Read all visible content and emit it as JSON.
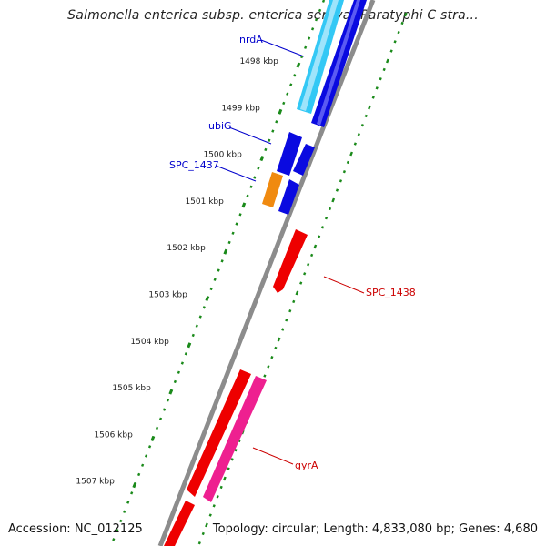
{
  "title": "Salmonella enterica subsp. enterica serovar Paratyphi C stra...",
  "accession": "Accession: NC_012125",
  "topology": "Topology: circular; Length: 4,833,080 bp; Genes: 4,680",
  "colors": {
    "backbone": "#8c8c8c",
    "tick": "#1a8a1a",
    "forward_label": "#0000cc",
    "reverse_label": "#cc0000",
    "blue": "#0a0ae0",
    "light_blue": "#33c8f5",
    "orange": "#f08a10",
    "red": "#ee0000",
    "pink": "#ee2090"
  },
  "ticks": [
    {
      "label": "1498 kbp"
    },
    {
      "label": "1499 kbp"
    },
    {
      "label": "1500 kbp"
    },
    {
      "label": "1501 kbp"
    },
    {
      "label": "1502 kbp"
    },
    {
      "label": "1503 kbp"
    },
    {
      "label": "1504 kbp"
    },
    {
      "label": "1505 kbp"
    },
    {
      "label": "1506 kbp"
    },
    {
      "label": "1507 kbp"
    }
  ],
  "gene_labels": {
    "nrdA": "nrdA",
    "ubiG": "ubiG",
    "spc1437": "SPC_1437",
    "spc1438": "SPC_1438",
    "gyrA": "gyrA"
  }
}
